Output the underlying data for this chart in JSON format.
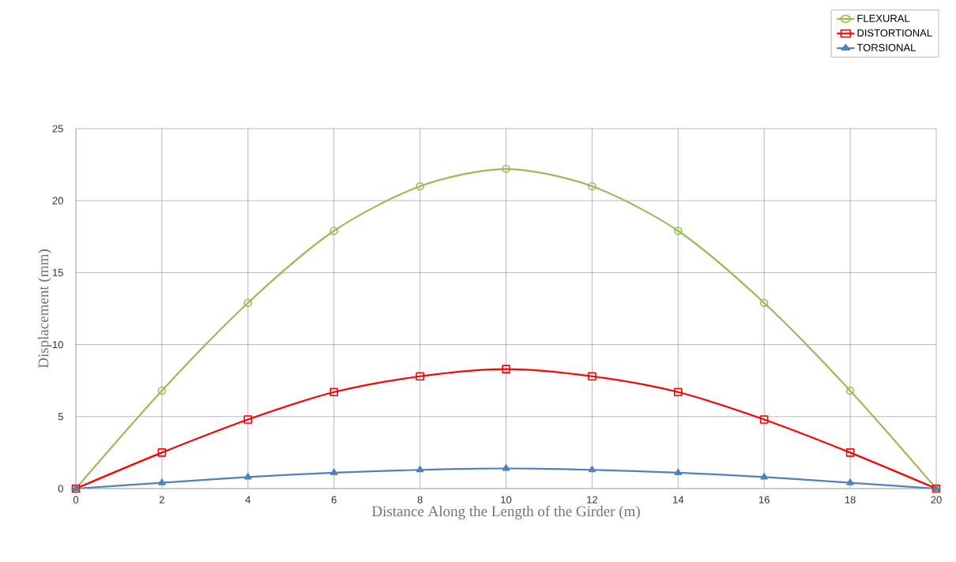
{
  "chart_data": {
    "type": "line",
    "xlabel": "Distance Along the Length of the Girder (m)",
    "ylabel": "Displacement (mm)",
    "x": [
      0,
      2,
      4,
      6,
      8,
      10,
      12,
      14,
      16,
      18,
      20
    ],
    "series": [
      {
        "name": "FLEXURAL",
        "color": "#9bbb59",
        "marker": "circle",
        "values": [
          0,
          6.8,
          12.9,
          17.9,
          21.0,
          22.2,
          21.0,
          17.9,
          12.9,
          6.8,
          0
        ]
      },
      {
        "name": "DISTORTIONAL",
        "color": "#ff0000",
        "marker": "square",
        "values": [
          0,
          2.5,
          4.8,
          6.7,
          7.8,
          8.3,
          7.8,
          6.7,
          4.8,
          2.5,
          0
        ]
      },
      {
        "name": "TORSIONAL",
        "color": "#4f81bd",
        "marker": "triangle",
        "values": [
          0,
          0.4,
          0.8,
          1.1,
          1.3,
          1.4,
          1.3,
          1.1,
          0.8,
          0.4,
          0
        ]
      }
    ],
    "xlim": [
      0,
      20
    ],
    "xticks": [
      0,
      2,
      4,
      6,
      8,
      10,
      12,
      14,
      16,
      18,
      20
    ],
    "ylim": [
      0,
      25
    ],
    "yticks": [
      0,
      5,
      10,
      15,
      20,
      25
    ],
    "grid": true,
    "legend": "top right",
    "line_style": "solid"
  }
}
